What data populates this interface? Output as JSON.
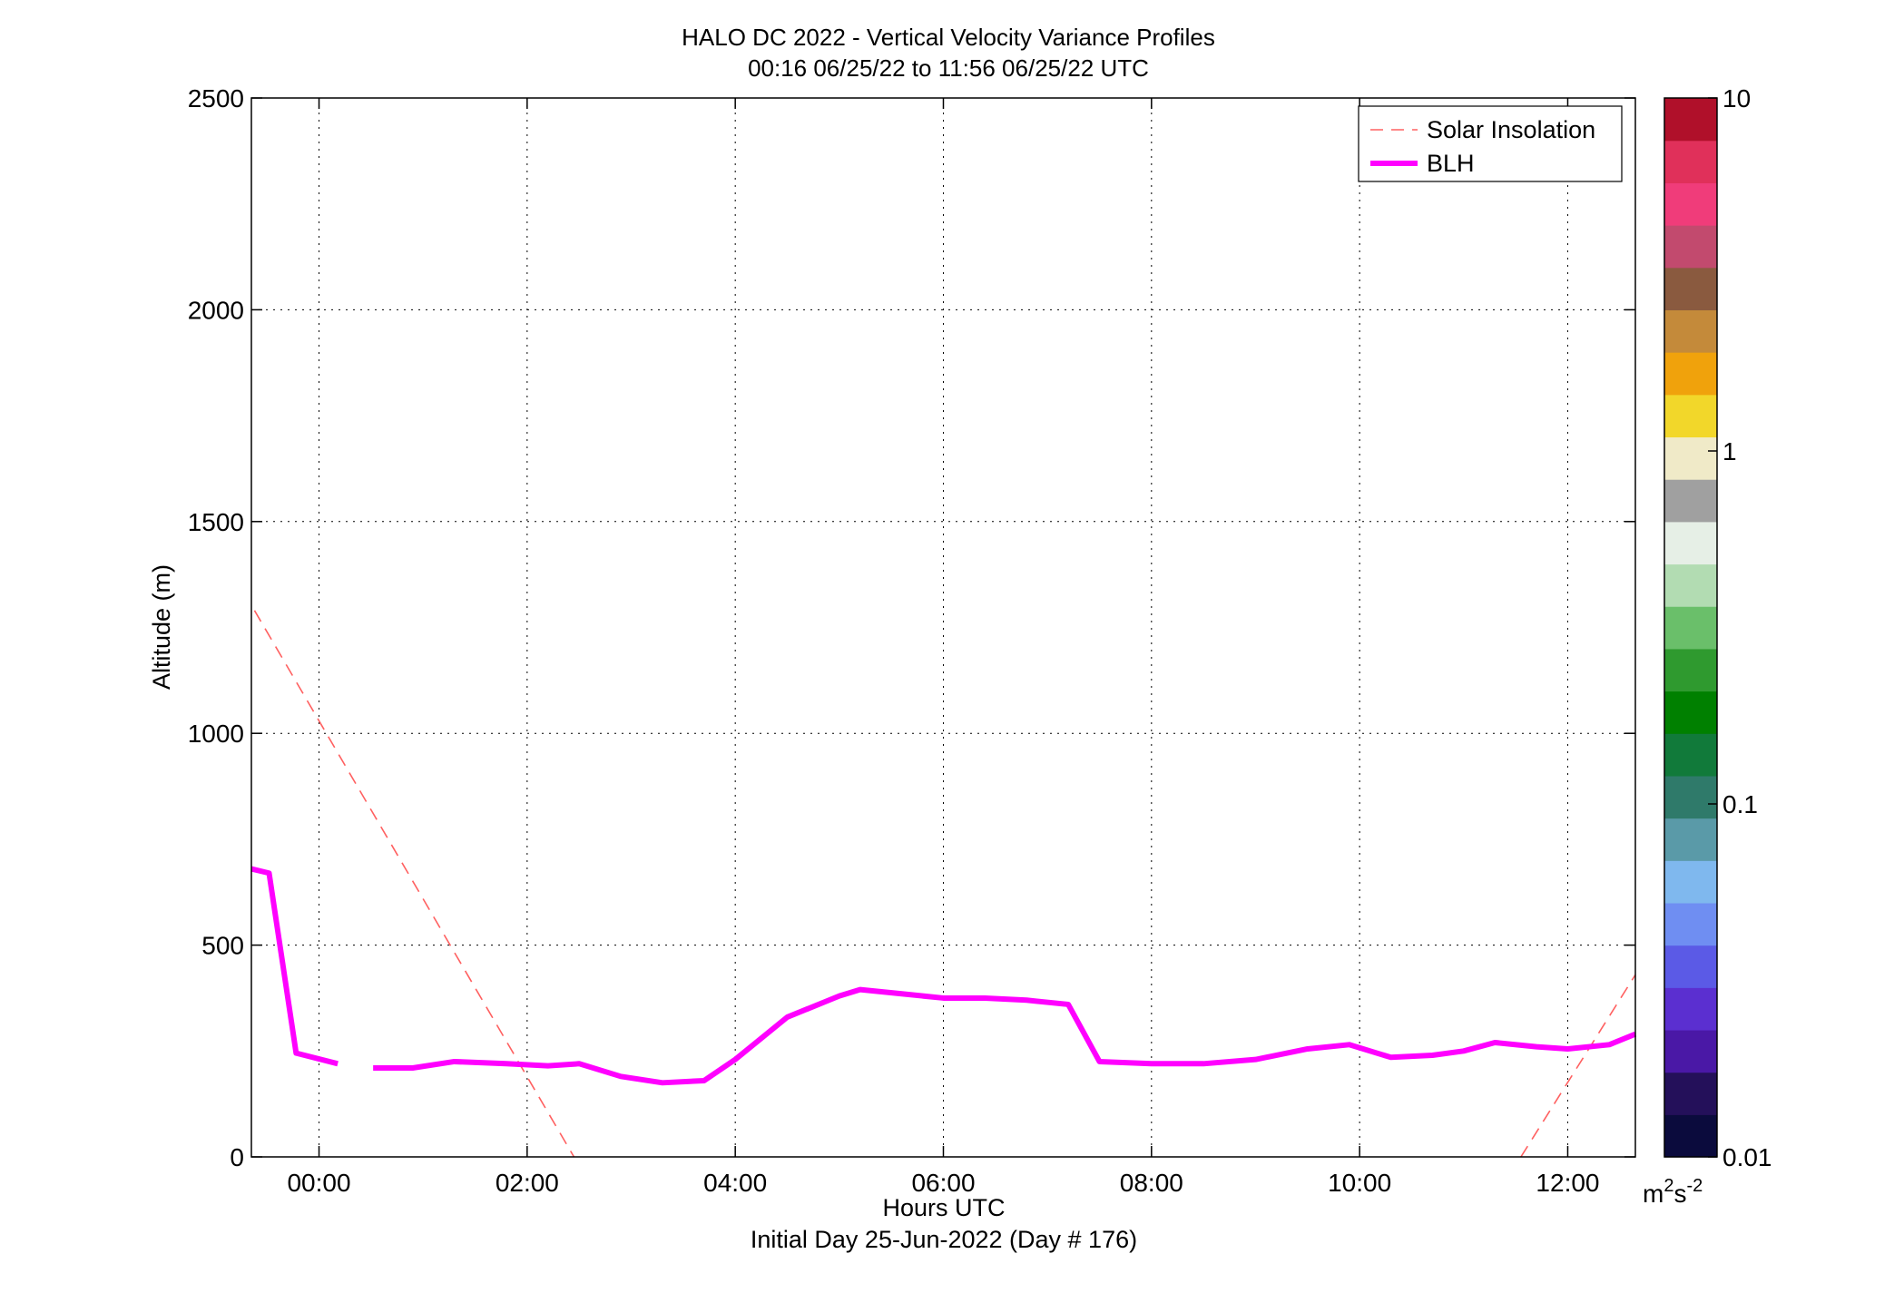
{
  "chart_data": {
    "type": "heatmap",
    "title": "HALO DC 2022 - Vertical Velocity Variance Profiles",
    "subtitle": "00:16 06/25/22 to 11:56 06/25/22  UTC",
    "xlabel": "Hours UTC",
    "xlabel2": "Initial Day 25-Jun-2022 (Day # 176)",
    "ylabel": "Altitude (m)",
    "xlim": [
      -0.65,
      12.65
    ],
    "ylim": [
      0,
      2500
    ],
    "x_ticks": [
      0,
      2,
      4,
      6,
      8,
      10,
      12
    ],
    "x_tick_labels": [
      "00:00",
      "02:00",
      "04:00",
      "06:00",
      "08:00",
      "10:00",
      "12:00"
    ],
    "y_ticks": [
      0,
      500,
      1000,
      1500,
      2000,
      2500
    ],
    "y_tick_labels": [
      "0",
      "500",
      "1000",
      "1500",
      "2000",
      "2500"
    ],
    "grid": true,
    "legend_position": "top-right",
    "colorbar": {
      "scale": "log",
      "range": [
        0.01,
        10
      ],
      "ticks": [
        0.01,
        0.1,
        1,
        10
      ],
      "tick_labels": [
        "0.01",
        "0.1",
        "1",
        "10"
      ],
      "unit_base": "m",
      "unit_sup1": "2",
      "unit_mid": "s",
      "unit_sup2": "-2",
      "colors": [
        "#0b0b3d",
        "#24105a",
        "#4a18a6",
        "#5b2fd0",
        "#5b5ae6",
        "#6f8ef2",
        "#7fb8ee",
        "#5a9aa8",
        "#2f7a6a",
        "#117a3a",
        "#008000",
        "#2f9a2f",
        "#6abf6a",
        "#b2dcb2",
        "#e6efe6",
        "#a0a0a0",
        "#f0eac8",
        "#f2d72a",
        "#f0a20c",
        "#c48a3a",
        "#8a5a3f",
        "#c24a6e",
        "#f03c7a",
        "#e0305a",
        "#b0102a"
      ]
    },
    "heatmap": {
      "x_start": 0.18,
      "x_step": 0.3333,
      "y_start": 87.5,
      "y_step": 50,
      "columns": [
        "NNNNNNNNNNNNNNNNNNNNNNNNNNNNNNNN",
        "NNNNNNNNNNNNNNNNNNNNNNNNNNNNNNNN",
        "NNNNNNNNNNNNNNNNNNNNNNNNNNNNNNNN",
        "NNNNNNNNNNNNNNNNNNNNNNNNNNNNNNNN",
        "NNNNNNNNNNNNNNNNNNNNNNNNNNNNNNNN",
        "NNNNNNNNNNNNNNNNNNNNNNNNNNNNNNNN",
        "NNNNNNNNNNNNNNNNNNNNNNNNNNNNNNNN",
        "NNNNNNNNNNNNNNNNNNNNNNNNNNNNNNNN",
        "NNNNNNNNNNNNNNNNNNNNNNNNNNNNNNNN",
        "NNNNNNNNNNNNNNNNNNNNNNNNNNNNNNNN",
        "NNNNNNNNNNNNNNNNNNNNNNNNNNNNNNNN",
        "NNNNNNNNNNNNNNNNNNNNNNNNNNNNNNNN",
        "NNNNNNNNNNNNNNNNNNNNNNNNNNNNNNNN",
        "NNNNNNNNNNNNNNNNNNNNNNNNNNNNNNNN",
        "NNNNNNNNNNNNNNNNNNNNNNNNNNNNNNNN",
        "NNNNNNNNNNNNNNNNNNNNNNNNNNNNNNNN",
        "NNNNNNNNNNNNNNNNNNNNNNNNNNNNNNNN",
        "NNNNNNNNNNNNNNNNNNNNNNNNNNNNNNNN",
        "NNNNNNNNNNNNNNNNNNNNNNNNNNNNNNNN",
        "NNNNNNNNNNNNNNNNNNNNNNNNNNNNNNNN",
        "NNNNNNNNNNNNNNNNNNNNNNNNNNNNNNNN",
        "NNNNNNNNNNNNNNNNNNNNNNNNNNNNNNNN",
        "NNNNNNNNNNNNNNNNNNNNNNNNNNNNNNNN",
        "NNNNNNNNNNNNNNNNNNNNNNNNNNNNNNNN",
        "NNNNNNNNNNNNNNNNNNNNNNNNNNNNNNNN",
        "NNNNNNNNNNNNNNNNNNNNNNNNNNNNNNNN",
        "NNNNNNNNNNNNNNNNNNNNNNNNNNNNNNNN",
        "NNNNNNNNNNNNNNNNNNNNNNNNNNNNNNNN",
        "NNNNNNNNNNNNNNNNNNNNNNNNNNNNNNNN",
        "NNNNNNNNNNNNNNNNNNNNNNNNNNNNNNNN",
        "NNNNNNNNNNNNNNNNNNNNNNNNNNNNNNNN",
        "NNNNNNNNNNNNNNNNNNNNNNNNNNNNNNNN",
        "NNNNNNNNNNNNNNNNNNNNNNNNNNNNNNNN",
        "NNNNNNNNNNNNNNNNNNNNNNNNNNNNNNNN",
        "NNNNNNNNNNNNNNNNNNNNNNNNNNNNNNNN",
        "NNNNNNNNNNNNNNNNNNNNNNNNNNNNNNNN",
        "NNNNNNNNNNNNNNNNNNNNNNNNNNNNNNNN"
      ]
    },
    "series": [
      {
        "name": "Solar Insolation",
        "color": "#ff6060",
        "style": "dashed",
        "segments": [
          {
            "x": [
              -0.62,
              2.45
            ],
            "y": [
              1290,
              0
            ]
          },
          {
            "x": [
              11.55,
              12.65
            ],
            "y": [
              0,
              430
            ]
          }
        ]
      },
      {
        "name": "BLH",
        "color": "#ff00ff",
        "style": "solid",
        "x": [
          -0.65,
          -0.48,
          -0.22,
          0.18
        ],
        "y": [
          680,
          670,
          245,
          220
        ],
        "x2": [
          0.52,
          0.9,
          1.3,
          1.8,
          2.2,
          2.5,
          2.9,
          3.3,
          3.7,
          4.0,
          4.5,
          5.0,
          5.2,
          5.6,
          6.0,
          6.4,
          6.8,
          7.2,
          7.5,
          8.0,
          8.5,
          9.0,
          9.5,
          9.9,
          10.3,
          10.7,
          11.0,
          11.3,
          11.7,
          12.0,
          12.4,
          12.65
        ],
        "y2": [
          210,
          210,
          225,
          220,
          215,
          220,
          190,
          175,
          180,
          230,
          330,
          380,
          395,
          385,
          375,
          375,
          370,
          360,
          225,
          220,
          220,
          230,
          255,
          265,
          235,
          240,
          250,
          270,
          260,
          255,
          265,
          290
        ]
      }
    ],
    "legend": [
      "Solar Insolation",
      "BLH"
    ]
  }
}
